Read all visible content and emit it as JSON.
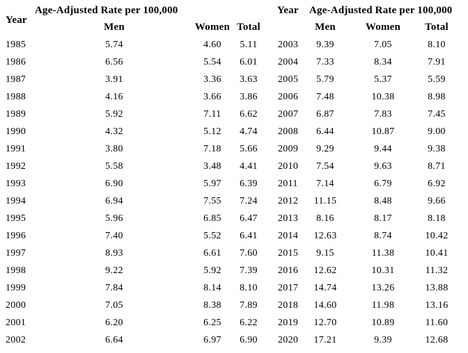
{
  "colors": {
    "text": "#000000",
    "background": "#ffffff"
  },
  "chart_data": [
    {
      "type": "table",
      "year_header": "Year",
      "group_header": "Age-Adjusted Rate per 100,000",
      "columns": [
        "Men",
        "Women",
        "Total"
      ],
      "rows": [
        [
          "1985",
          "5.74",
          "4.60",
          "5.11"
        ],
        [
          "1986",
          "6.56",
          "5.54",
          "6.01"
        ],
        [
          "1987",
          "3.91",
          "3.36",
          "3.63"
        ],
        [
          "1988",
          "4.16",
          "3.66",
          "3.86"
        ],
        [
          "1989",
          "5.92",
          "7.11",
          "6.62"
        ],
        [
          "1990",
          "4.32",
          "5.12",
          "4.74"
        ],
        [
          "1991",
          "3.80",
          "7.18",
          "5.66"
        ],
        [
          "1992",
          "5.58",
          "3.48",
          "4.41"
        ],
        [
          "1993",
          "6.90",
          "5.97",
          "6.39"
        ],
        [
          "1994",
          "6.94",
          "7.55",
          "7.24"
        ],
        [
          "1995",
          "5.96",
          "6.85",
          "6.47"
        ],
        [
          "1996",
          "7.40",
          "5.52",
          "6.41"
        ],
        [
          "1997",
          "8.93",
          "6.61",
          "7.60"
        ],
        [
          "1998",
          "9.22",
          "5.92",
          "7.39"
        ],
        [
          "1999",
          "7.84",
          "8.14",
          "8.10"
        ],
        [
          "2000",
          "7.05",
          "8.38",
          "7.89"
        ],
        [
          "2001",
          "6.20",
          "6.25",
          "6.22"
        ],
        [
          "2002",
          "6.64",
          "6.97",
          "6.90"
        ]
      ]
    },
    {
      "type": "table",
      "year_header": "Year",
      "group_header": "Age-Adjusted Rate per 100,000",
      "columns": [
        "Men",
        "Women",
        "Total"
      ],
      "rows": [
        [
          "2003",
          "9.39",
          "7.05",
          "8.10"
        ],
        [
          "2004",
          "7.33",
          "8.34",
          "7.91"
        ],
        [
          "2005",
          "5.79",
          "5.37",
          "5.59"
        ],
        [
          "2006",
          "7.48",
          "10.38",
          "8.98"
        ],
        [
          "2007",
          "6.87",
          "7.83",
          "7.45"
        ],
        [
          "2008",
          "6.44",
          "10.87",
          "9.00"
        ],
        [
          "2009",
          "9.29",
          "9.44",
          "9.38"
        ],
        [
          "2010",
          "7.54",
          "9.63",
          "8.71"
        ],
        [
          "2011",
          "7.14",
          "6.79",
          "6.92"
        ],
        [
          "2012",
          "11.15",
          "8.48",
          "9.66"
        ],
        [
          "2013",
          "8.16",
          "8.17",
          "8.18"
        ],
        [
          "2014",
          "12.63",
          "8.74",
          "10.42"
        ],
        [
          "2015",
          "9.15",
          "11.38",
          "10.41"
        ],
        [
          "2016",
          "12.62",
          "10.31",
          "11.32"
        ],
        [
          "2017",
          "14.74",
          "13.26",
          "13.88"
        ],
        [
          "2018",
          "14.60",
          "11.98",
          "13.16"
        ],
        [
          "2019",
          "12.70",
          "10.89",
          "11.60"
        ],
        [
          "2020",
          "17.21",
          "9.39",
          "12.68"
        ]
      ]
    }
  ]
}
